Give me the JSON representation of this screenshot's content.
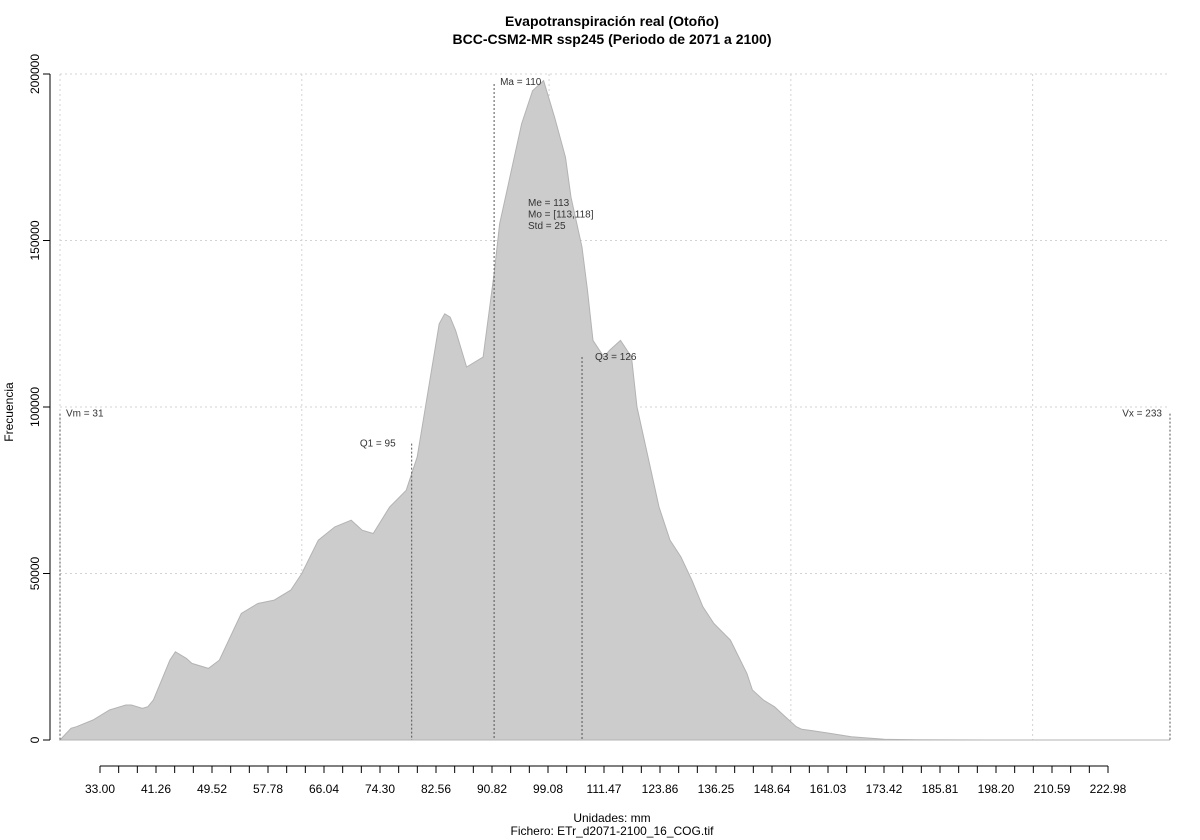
{
  "chart_data": {
    "type": "area",
    "title": "Evapotranspiración real (Otoño)",
    "subtitle": "BCC-CSM2-MR ssp245 (Periodo de 2071 a 2100)",
    "xlabel": "Unidades: mm",
    "caption": "Fichero: ETr_d2071-2100_16_COG.tif",
    "ylabel": "Frecuencia",
    "xlim": [
      31,
      233
    ],
    "ylim": [
      0,
      200000
    ],
    "grid": true,
    "x_tick_labels": [
      "33.00",
      "41.26",
      "49.52",
      "57.78",
      "66.04",
      "74.30",
      "82.56",
      "90.82",
      "99.08",
      "111.47",
      "123.86",
      "136.25",
      "148.64",
      "161.03",
      "173.42",
      "185.81",
      "198.20",
      "210.59",
      "222.98"
    ],
    "y_ticks": [
      0,
      50000,
      100000,
      150000,
      200000
    ],
    "y_tick_labels": [
      "0",
      "50000",
      "100000",
      "150000",
      "200000"
    ],
    "x": [
      31,
      33,
      34,
      37,
      40,
      43,
      44,
      46,
      47,
      48,
      50,
      51,
      52,
      54,
      55,
      58,
      60,
      62,
      64,
      67,
      70,
      73,
      75,
      78,
      81,
      84,
      86,
      88,
      91,
      94,
      96,
      98,
      100,
      101,
      102,
      103,
      105,
      108,
      110,
      111,
      113,
      115,
      117,
      119,
      121,
      123,
      124,
      126,
      127,
      128,
      130,
      131,
      133,
      135,
      136,
      138,
      140,
      142,
      144,
      146,
      148,
      150,
      153,
      156,
      157,
      159,
      161,
      163,
      165,
      166,
      168,
      171,
      175,
      181,
      187,
      200,
      220,
      230,
      233
    ],
    "y": [
      0,
      3500,
      4000,
      6000,
      9000,
      10500,
      10500,
      9500,
      10000,
      12000,
      20000,
      24000,
      26500,
      24500,
      23000,
      21500,
      24000,
      31000,
      38000,
      41000,
      42000,
      45000,
      50000,
      60000,
      64000,
      66000,
      63000,
      62000,
      70000,
      75000,
      85000,
      105000,
      125000,
      128000,
      127000,
      123000,
      112000,
      115000,
      140000,
      155000,
      170000,
      185000,
      195000,
      198000,
      187000,
      175000,
      163000,
      148000,
      135000,
      120000,
      115000,
      117000,
      120000,
      115000,
      100000,
      85000,
      70000,
      60000,
      55000,
      48000,
      40000,
      35000,
      30000,
      20000,
      15000,
      12000,
      10000,
      7000,
      4000,
      3200,
      2800,
      2000,
      1000,
      200,
      100,
      0,
      0,
      0,
      0
    ],
    "stats": {
      "vm": {
        "label": "Vm = 31",
        "x": 31,
        "y": 98000
      },
      "q1": {
        "label": "Q1 = 95",
        "x": 95,
        "y": 89000
      },
      "ma": {
        "label": "Ma = 110",
        "x": 110,
        "y": 197000
      },
      "q3": {
        "label": "Q3 = 126",
        "x": 126,
        "y": 115000
      },
      "vx": {
        "label": "Vx = 233",
        "x": 233,
        "y": 98000
      },
      "center_lines": [
        "Me = 113",
        "Mo = [113,118]",
        "Std = 25"
      ]
    },
    "colors": {
      "fill": "#cccccc",
      "stroke": "#b3b3b3",
      "grid": "#d3d3d3",
      "axis": "#000000"
    }
  }
}
